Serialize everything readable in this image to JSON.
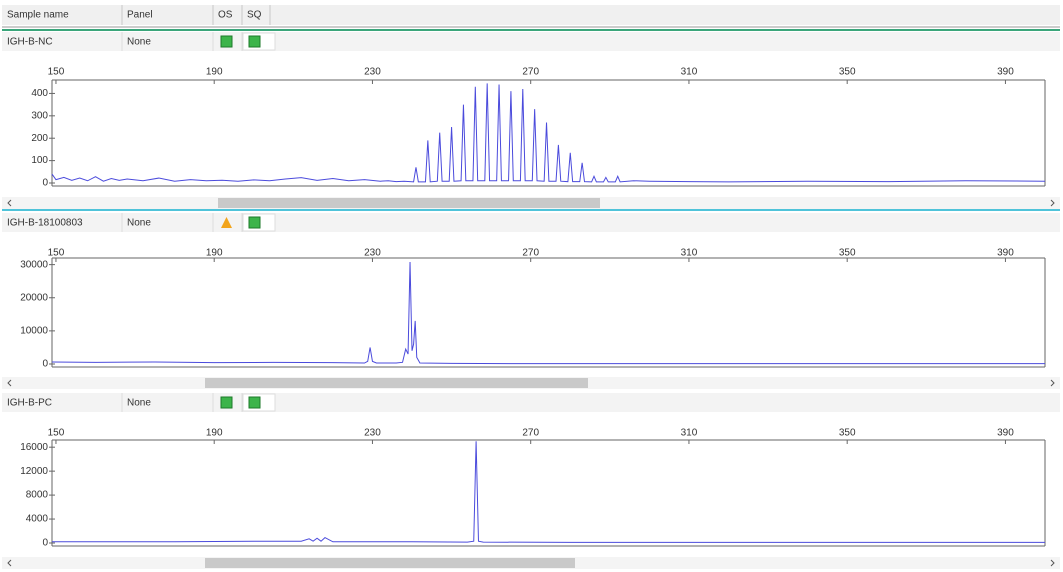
{
  "header": {
    "columns": [
      "Sample name",
      "Panel",
      "OS",
      "SQ"
    ]
  },
  "samples": [
    {
      "name": "IGH-B-NC",
      "panel": "None"
    },
    {
      "name": "IGH-B-18100803",
      "panel": "None"
    },
    {
      "name": "IGH-B-PC",
      "panel": "None"
    }
  ],
  "chart_data": [
    {
      "type": "line",
      "x": [
        149,
        150,
        152,
        154,
        156,
        158,
        160,
        162,
        164,
        166,
        168,
        172,
        176,
        180,
        184,
        188,
        192,
        196,
        200,
        204,
        208,
        212,
        216,
        220,
        224,
        228,
        232,
        234,
        236,
        238,
        240.4,
        241,
        241.6,
        243.4,
        244,
        244.6,
        246.4,
        247,
        247.6,
        249.4,
        250,
        250.6,
        252.4,
        253,
        253.6,
        255.4,
        256,
        256.6,
        258.4,
        259,
        259.6,
        261.4,
        262,
        262.6,
        264.4,
        265,
        265.6,
        267.4,
        268,
        268.6,
        270.4,
        271,
        271.6,
        273.4,
        274,
        274.6,
        276.4,
        277,
        277.6,
        279.4,
        280,
        280.6,
        282.4,
        283,
        283.6,
        285.4,
        286,
        286.6,
        288.4,
        289,
        289.6,
        291.4,
        292,
        292.6,
        296,
        300,
        310,
        320,
        340,
        360,
        380,
        400
      ],
      "series": [
        {
          "color": "#4b4bdc",
          "values": [
            40,
            15,
            25,
            12,
            22,
            10,
            28,
            8,
            20,
            12,
            18,
            10,
            22,
            8,
            15,
            10,
            12,
            8,
            14,
            10,
            18,
            24,
            12,
            20,
            10,
            15,
            8,
            10,
            6,
            8,
            5,
            70,
            5,
            5,
            190,
            5,
            8,
            225,
            8,
            8,
            250,
            8,
            10,
            350,
            10,
            10,
            430,
            10,
            10,
            445,
            10,
            10,
            440,
            10,
            10,
            410,
            10,
            10,
            420,
            10,
            10,
            330,
            10,
            8,
            270,
            8,
            8,
            170,
            8,
            6,
            135,
            6,
            6,
            90,
            6,
            5,
            30,
            5,
            5,
            25,
            5,
            5,
            30,
            5,
            10,
            8,
            6,
            5,
            8,
            6,
            10,
            8
          ]
        }
      ],
      "xlim": [
        149,
        400
      ],
      "xticks": [
        150,
        190,
        230,
        270,
        310,
        350,
        390
      ],
      "ylim": [
        0,
        460
      ],
      "yticks": [
        0,
        100,
        200,
        300,
        400
      ]
    },
    {
      "type": "line",
      "x": [
        149,
        160,
        175,
        190,
        205,
        220,
        228,
        228.8,
        229.4,
        230,
        231,
        236,
        237.6,
        238.4,
        239,
        239.5,
        240,
        240.4,
        240.8,
        241.2,
        242,
        250,
        270,
        300,
        350,
        400
      ],
      "series": [
        {
          "color": "#4b4bdc",
          "values": [
            600,
            500,
            600,
            400,
            500,
            400,
            300,
            800,
            5000,
            800,
            300,
            300,
            500,
            4500,
            3000,
            30800,
            4000,
            6000,
            13000,
            2000,
            300,
            200,
            100,
            100,
            100,
            100
          ]
        }
      ],
      "xlim": [
        149,
        400
      ],
      "xticks": [
        150,
        190,
        230,
        270,
        310,
        350,
        390
      ],
      "ylim": [
        0,
        32000
      ],
      "yticks": [
        0,
        10000,
        20000,
        30000
      ]
    },
    {
      "type": "line",
      "x": [
        149,
        180,
        200,
        212,
        214,
        215,
        216,
        217,
        218,
        220,
        240,
        254,
        255.6,
        256.2,
        256.8,
        258,
        280,
        320,
        360,
        400
      ],
      "series": [
        {
          "color": "#4b4bdc",
          "values": [
            200,
            200,
            300,
            300,
            700,
            300,
            800,
            300,
            900,
            200,
            200,
            150,
            300,
            17000,
            300,
            150,
            100,
            100,
            100,
            100
          ]
        }
      ],
      "xlim": [
        149,
        400
      ],
      "xticks": [
        150,
        190,
        230,
        270,
        310,
        350,
        390
      ],
      "ylim": [
        0,
        17200
      ],
      "yticks": [
        0,
        4000,
        8000,
        12000,
        16000
      ]
    }
  ]
}
